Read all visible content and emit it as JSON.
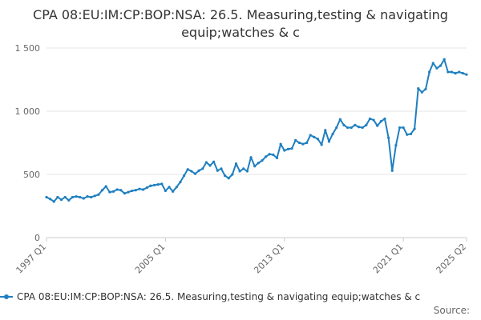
{
  "title": "CPA 08:EU:IM:CP:BOP:NSA: 26.5. Measuring,testing & navigating equip;watches & c",
  "legend_label": "CPA 08:EU:IM:CP:BOP:NSA: 26.5. Measuring,testing & navigating equip;watches & c",
  "source_label": "Source:",
  "colors": {
    "series": "#1f7fc0",
    "grid": "#e6e6e6",
    "axis": "#cccccc"
  },
  "chart_data": {
    "type": "line",
    "title": "CPA 08:EU:IM:CP:BOP:NSA: 26.5. Measuring,testing & navigating equip;watches & c",
    "xlabel": "",
    "ylabel": "",
    "x_start": "1997 Q1",
    "x_end": "2025 Q2",
    "x_ticks": [
      "1997 Q1",
      "2005 Q1",
      "2013 Q1",
      "2021 Q1",
      "2025 Q2"
    ],
    "y_ticks": [
      0,
      500,
      1000,
      1500
    ],
    "y_tick_labels": [
      "0",
      "500",
      "1 000",
      "1 500"
    ],
    "ylim": [
      0,
      1500
    ],
    "grid": true,
    "legend_position": "bottom",
    "series": [
      {
        "name": "CPA 08:EU:IM:CP:BOP:NSA: 26.5. Measuring,testing & navigating equip;watches & c",
        "values": [
          320,
          305,
          285,
          320,
          300,
          320,
          295,
          320,
          325,
          320,
          310,
          325,
          320,
          330,
          340,
          375,
          405,
          360,
          365,
          380,
          375,
          350,
          360,
          370,
          375,
          385,
          380,
          395,
          410,
          415,
          420,
          425,
          370,
          400,
          365,
          400,
          440,
          490,
          540,
          525,
          505,
          530,
          545,
          595,
          570,
          600,
          530,
          545,
          490,
          470,
          500,
          585,
          525,
          545,
          525,
          635,
          565,
          590,
          610,
          640,
          660,
          655,
          630,
          740,
          690,
          700,
          705,
          770,
          750,
          740,
          750,
          810,
          795,
          780,
          735,
          850,
          760,
          820,
          870,
          935,
          890,
          870,
          870,
          890,
          875,
          870,
          890,
          940,
          930,
          885,
          920,
          940,
          790,
          530,
          730,
          870,
          870,
          815,
          820,
          860,
          1180,
          1150,
          1175,
          1310,
          1380,
          1340,
          1360,
          1410,
          1310,
          1310,
          1300,
          1310,
          1300,
          1290
        ]
      }
    ]
  }
}
